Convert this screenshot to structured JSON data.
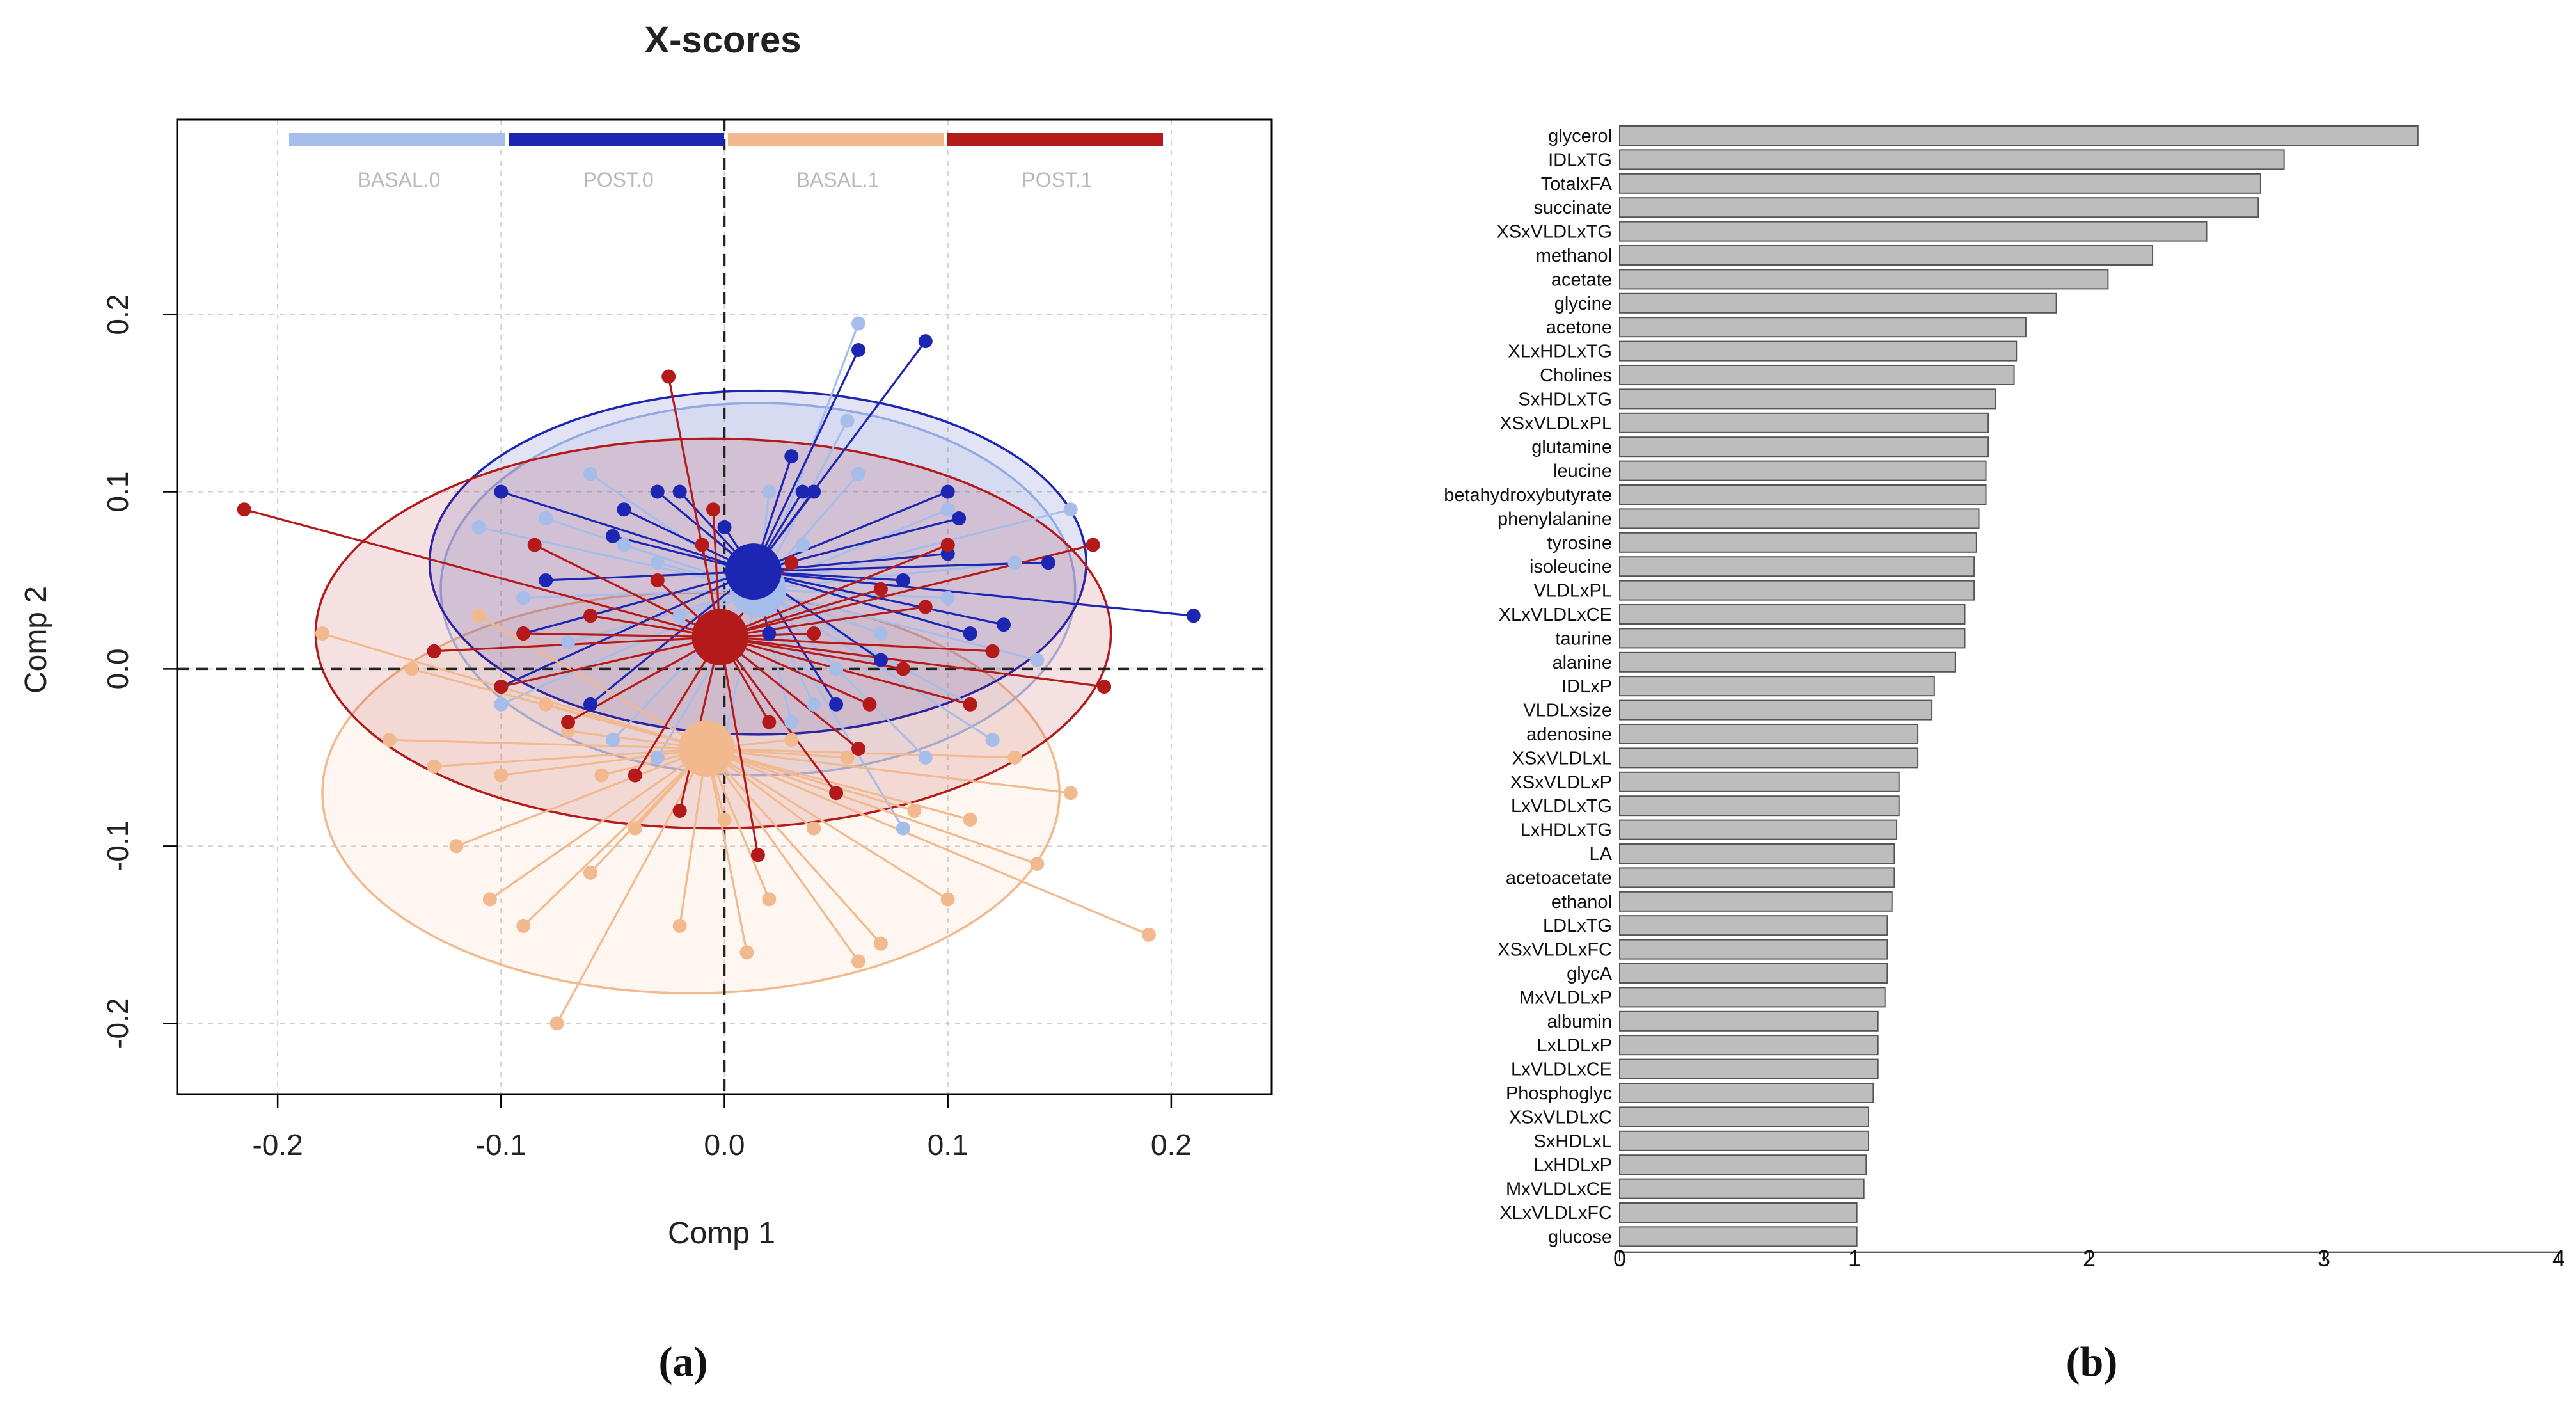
{
  "panels": {
    "a": "(a)",
    "b": "(b)"
  },
  "colors": {
    "BASAL.0": "#a6bde9",
    "POST.0": "#1c26b3",
    "BASAL.1": "#f2b98f",
    "POST.1": "#b51a1a",
    "bar_fill": "#bdbdbd",
    "bar_stroke": "#555555"
  },
  "chart_data": [
    {
      "type": "scatter",
      "title": "X-scores",
      "xlabel": "Comp 1",
      "ylabel": "Comp 2",
      "xlim": [
        -0.245,
        0.245
      ],
      "ylim": [
        -0.24,
        0.31
      ],
      "xticks": [
        -0.2,
        -0.1,
        0.0,
        0.1,
        0.2
      ],
      "xtick_labels": [
        "-0.2",
        "-0.1",
        "0.0",
        "0.1",
        "0.2"
      ],
      "yticks": [
        -0.2,
        -0.1,
        0.0,
        0.1,
        0.2
      ],
      "ytick_labels": [
        "-0.2",
        "-0.1",
        "0.0",
        "0.1",
        "0.2"
      ],
      "grid": true,
      "legend": [
        "BASAL.0",
        "POST.0",
        "BASAL.1",
        "POST.1"
      ],
      "legend_position": "top",
      "groups": [
        {
          "name": "BASAL.0",
          "centroid": [
            0.015,
            0.045
          ],
          "ellipse": {
            "center": [
              0.015,
              0.045
            ],
            "rx": 0.142,
            "ry": 0.105
          },
          "points": [
            [
              -0.08,
              0.085
            ],
            [
              -0.06,
              0.11
            ],
            [
              -0.03,
              0.06
            ],
            [
              0.02,
              0.1
            ],
            [
              0.06,
              0.195
            ],
            [
              0.055,
              0.14
            ],
            [
              0.1,
              0.04
            ],
            [
              0.11,
              -0.02
            ],
            [
              0.09,
              -0.05
            ],
            [
              0.04,
              -0.02
            ],
            [
              0.0,
              -0.04
            ],
            [
              -0.05,
              -0.04
            ],
            [
              -0.1,
              -0.02
            ],
            [
              -0.09,
              0.04
            ],
            [
              0.07,
              0.02
            ],
            [
              0.13,
              0.06
            ],
            [
              0.155,
              0.09
            ],
            [
              0.035,
              0.07
            ],
            [
              -0.02,
              0.03
            ],
            [
              0.08,
              -0.09
            ],
            [
              -0.045,
              0.07
            ],
            [
              0.12,
              -0.04
            ],
            [
              0.06,
              0.11
            ],
            [
              -0.07,
              0.015
            ],
            [
              0.03,
              -0.03
            ],
            [
              0.1,
              0.09
            ],
            [
              -0.03,
              -0.05
            ],
            [
              0.14,
              0.005
            ],
            [
              -0.11,
              0.08
            ],
            [
              0.05,
              0.0
            ]
          ]
        },
        {
          "name": "POST.0",
          "centroid": [
            0.013,
            0.055
          ],
          "ellipse": {
            "center": [
              0.015,
              0.06
            ],
            "rx": 0.147,
            "ry": 0.097
          },
          "points": [
            [
              0.09,
              0.185
            ],
            [
              0.06,
              0.18
            ],
            [
              -0.1,
              0.1
            ],
            [
              -0.03,
              0.1
            ],
            [
              0.0,
              0.08
            ],
            [
              0.1,
              0.1
            ],
            [
              0.145,
              0.06
            ],
            [
              0.21,
              0.03
            ],
            [
              0.11,
              0.02
            ],
            [
              0.105,
              0.085
            ],
            [
              0.04,
              0.1
            ],
            [
              -0.05,
              0.075
            ],
            [
              -0.08,
              0.05
            ],
            [
              -0.1,
              -0.01
            ],
            [
              -0.06,
              -0.02
            ],
            [
              0.03,
              0.12
            ],
            [
              -0.045,
              0.09
            ],
            [
              0.07,
              0.005
            ],
            [
              0.1,
              0.065
            ],
            [
              0.125,
              0.025
            ],
            [
              -0.02,
              0.1
            ],
            [
              0.035,
              0.1
            ],
            [
              0.08,
              0.05
            ],
            [
              0.02,
              0.02
            ],
            [
              -0.09,
              0.02
            ],
            [
              0.05,
              -0.02
            ]
          ]
        },
        {
          "name": "BASAL.1",
          "centroid": [
            -0.008,
            -0.045
          ],
          "ellipse": {
            "center": [
              -0.015,
              -0.07
            ],
            "rx": 0.165,
            "ry": 0.113
          },
          "points": [
            [
              -0.18,
              0.02
            ],
            [
              -0.12,
              -0.1
            ],
            [
              -0.105,
              -0.13
            ],
            [
              -0.06,
              -0.115
            ],
            [
              -0.02,
              -0.145
            ],
            [
              0.02,
              -0.13
            ],
            [
              0.06,
              -0.165
            ],
            [
              0.07,
              -0.155
            ],
            [
              0.19,
              -0.15
            ],
            [
              0.1,
              -0.13
            ],
            [
              0.14,
              -0.11
            ],
            [
              0.155,
              -0.07
            ],
            [
              0.13,
              -0.05
            ],
            [
              -0.15,
              -0.04
            ],
            [
              -0.13,
              -0.055
            ],
            [
              -0.1,
              -0.06
            ],
            [
              -0.08,
              -0.02
            ],
            [
              -0.07,
              -0.035
            ],
            [
              -0.14,
              0.0
            ],
            [
              -0.055,
              -0.06
            ],
            [
              0.0,
              -0.085
            ],
            [
              0.04,
              -0.09
            ],
            [
              0.085,
              -0.08
            ],
            [
              -0.075,
              -0.2
            ],
            [
              0.01,
              -0.16
            ],
            [
              -0.11,
              0.03
            ],
            [
              0.03,
              -0.04
            ],
            [
              0.11,
              -0.085
            ],
            [
              -0.04,
              -0.09
            ],
            [
              0.055,
              -0.05
            ],
            [
              -0.09,
              -0.145
            ]
          ]
        },
        {
          "name": "POST.1",
          "centroid": [
            -0.002,
            0.018
          ],
          "ellipse": {
            "center": [
              -0.005,
              0.02
            ],
            "rx": 0.178,
            "ry": 0.11
          },
          "points": [
            [
              -0.215,
              0.09
            ],
            [
              -0.025,
              0.165
            ],
            [
              0.17,
              -0.01
            ],
            [
              0.165,
              0.07
            ],
            [
              0.015,
              -0.105
            ],
            [
              0.1,
              0.07
            ],
            [
              -0.01,
              0.07
            ],
            [
              0.07,
              0.045
            ],
            [
              0.09,
              0.035
            ],
            [
              -0.085,
              0.07
            ],
            [
              -0.06,
              0.03
            ],
            [
              -0.03,
              0.05
            ],
            [
              0.04,
              0.02
            ],
            [
              -0.1,
              -0.01
            ],
            [
              -0.07,
              -0.03
            ],
            [
              0.05,
              -0.07
            ],
            [
              0.06,
              -0.045
            ],
            [
              -0.04,
              -0.06
            ],
            [
              0.02,
              -0.03
            ],
            [
              0.12,
              0.01
            ],
            [
              -0.005,
              0.09
            ],
            [
              0.11,
              -0.02
            ],
            [
              -0.09,
              0.02
            ],
            [
              0.08,
              0.0
            ],
            [
              -0.13,
              0.01
            ],
            [
              0.03,
              0.06
            ],
            [
              -0.02,
              -0.08
            ],
            [
              0.065,
              -0.02
            ]
          ]
        }
      ]
    },
    {
      "type": "bar",
      "orientation": "horizontal",
      "categories": [
        "glycerol",
        "IDLxTG",
        "TotalxFA",
        "succinate",
        "XSxVLDLxTG",
        "methanol",
        "acetate",
        "glycine",
        "acetone",
        "XLxHDLxTG",
        "Cholines",
        "SxHDLxTG",
        "XSxVLDLxPL",
        "glutamine",
        "leucine",
        "betahydroxybutyrate",
        "phenylalanine",
        "tyrosine",
        "isoleucine",
        "VLDLxPL",
        "XLxVLDLxCE",
        "taurine",
        "alanine",
        "IDLxP",
        "VLDLxsize",
        "adenosine",
        "XSxVLDLxL",
        "XSxVLDLxP",
        "LxVLDLxTG",
        "LxHDLxTG",
        "LA",
        "acetoacetate",
        "ethanol",
        "LDLxTG",
        "XSxVLDLxFC",
        "glycA",
        "MxVLDLxP",
        "albumin",
        "LxLDLxP",
        "LxVLDLxCE",
        "Phosphoglyc",
        "XSxVLDLxC",
        "SxHDLxL",
        "LxHDLxP",
        "MxVLDLxCE",
        "XLxVLDLxFC",
        "glucose"
      ],
      "values": [
        3.4,
        2.83,
        2.73,
        2.72,
        2.5,
        2.27,
        2.08,
        1.86,
        1.73,
        1.69,
        1.68,
        1.6,
        1.57,
        1.57,
        1.56,
        1.56,
        1.53,
        1.52,
        1.51,
        1.51,
        1.47,
        1.47,
        1.43,
        1.34,
        1.33,
        1.27,
        1.27,
        1.19,
        1.19,
        1.18,
        1.17,
        1.17,
        1.16,
        1.14,
        1.14,
        1.14,
        1.13,
        1.1,
        1.1,
        1.1,
        1.08,
        1.06,
        1.06,
        1.05,
        1.04,
        1.01,
        1.01
      ],
      "xlim": [
        0,
        4
      ],
      "xticks": [
        0,
        1,
        2,
        3,
        4
      ],
      "xtick_labels": [
        "0",
        "1",
        "2",
        "3",
        "4"
      ],
      "title": "",
      "xlabel": "",
      "ylabel": ""
    }
  ]
}
